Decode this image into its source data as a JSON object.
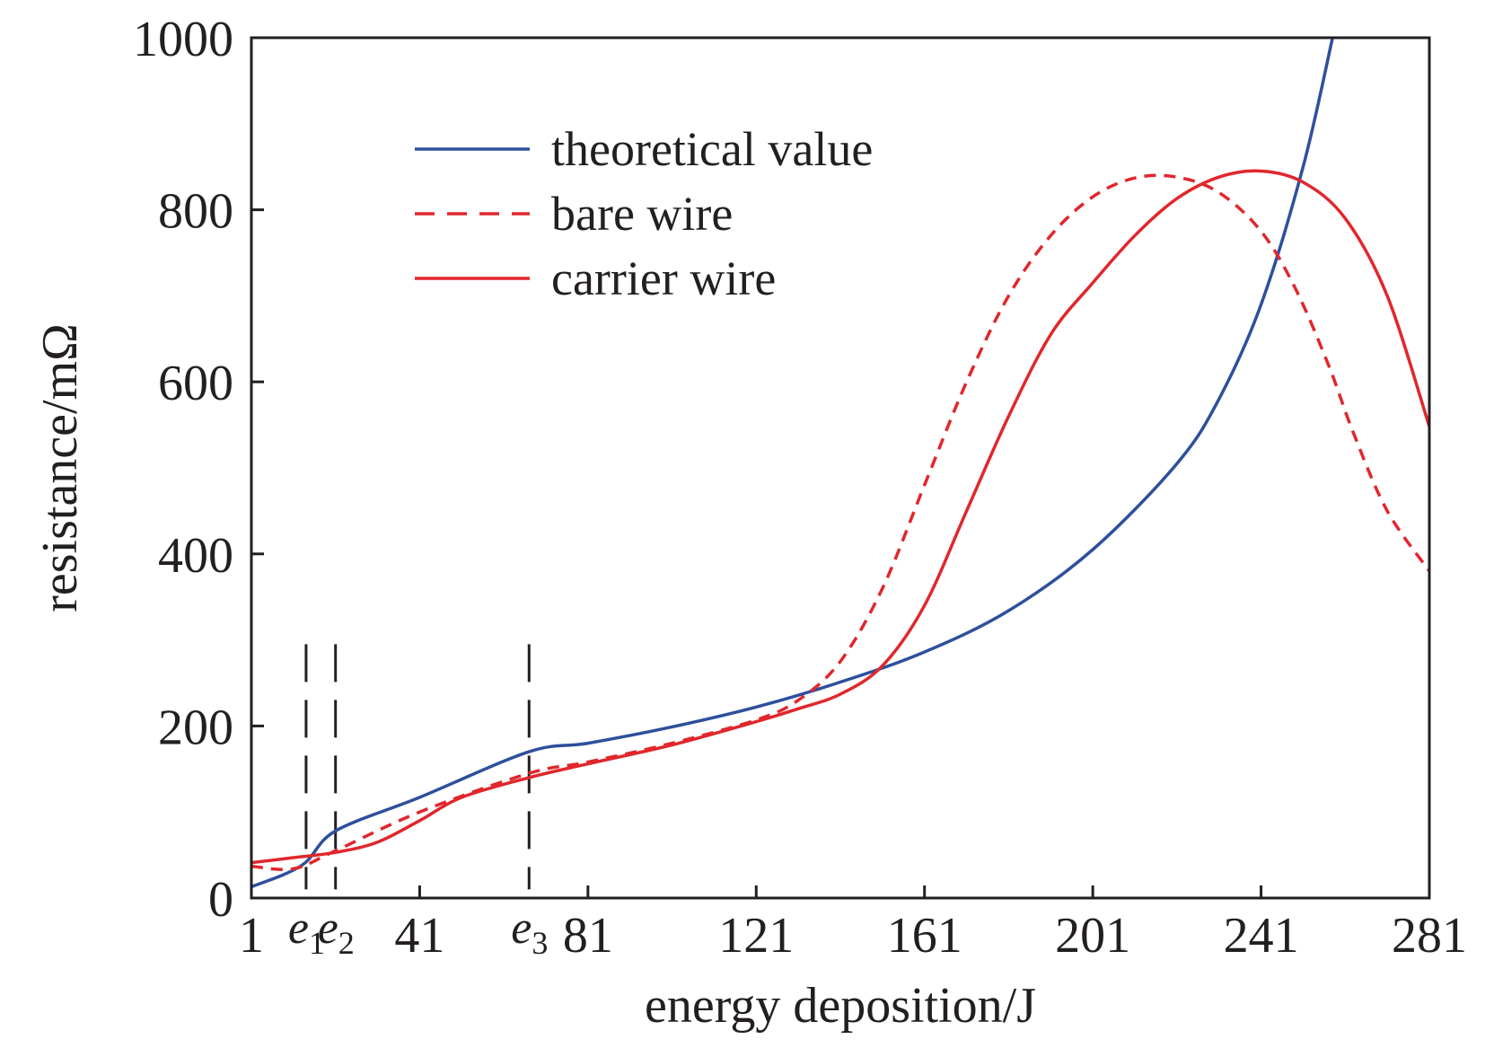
{
  "chart_data": {
    "type": "line",
    "xlabel": "energy deposition/J",
    "ylabel": "resistance/mΩ",
    "xlim": [
      1,
      281
    ],
    "ylim": [
      0,
      1000
    ],
    "x_ticks": [
      1,
      41,
      81,
      121,
      161,
      201,
      241,
      281
    ],
    "x_tick_labels": [
      "1",
      "41",
      "81",
      "121",
      "161",
      "201",
      "241",
      "281"
    ],
    "y_ticks": [
      0,
      200,
      400,
      600,
      800,
      1000
    ],
    "y_tick_labels": [
      "0",
      "200",
      "400",
      "600",
      "800",
      "1000"
    ],
    "grid": false,
    "legend_position": "top-center",
    "markers": [
      {
        "label": "e",
        "sub": "1",
        "x": 14
      },
      {
        "label": "e",
        "sub": "2",
        "x": 21
      },
      {
        "label": "e",
        "sub": "3",
        "x": 67
      }
    ],
    "series": [
      {
        "name": "theoretical value",
        "color": "#2e4f9c",
        "dash": "solid",
        "points": [
          [
            1,
            13
          ],
          [
            13,
            38
          ],
          [
            21,
            78
          ],
          [
            41,
            117
          ],
          [
            67,
            170
          ],
          [
            81,
            180
          ],
          [
            101,
            199
          ],
          [
            121,
            222
          ],
          [
            141,
            251
          ],
          [
            161,
            286
          ],
          [
            181,
            334
          ],
          [
            201,
            405
          ],
          [
            221,
            505
          ],
          [
            231,
            580
          ],
          [
            241,
            690
          ],
          [
            251,
            850
          ],
          [
            258,
            1000
          ]
        ]
      },
      {
        "name": "bare wire",
        "color": "#e0272c",
        "dash": "dashed",
        "points": [
          [
            1,
            37
          ],
          [
            11,
            34
          ],
          [
            21,
            55
          ],
          [
            41,
            100
          ],
          [
            67,
            145
          ],
          [
            81,
            158
          ],
          [
            101,
            180
          ],
          [
            121,
            207
          ],
          [
            131,
            230
          ],
          [
            141,
            275
          ],
          [
            151,
            360
          ],
          [
            161,
            480
          ],
          [
            171,
            600
          ],
          [
            181,
            700
          ],
          [
            191,
            770
          ],
          [
            201,
            815
          ],
          [
            211,
            837
          ],
          [
            221,
            838
          ],
          [
            231,
            820
          ],
          [
            241,
            775
          ],
          [
            249,
            710
          ],
          [
            257,
            620
          ],
          [
            263,
            540
          ],
          [
            271,
            450
          ],
          [
            281,
            380
          ]
        ]
      },
      {
        "name": "carrier wire",
        "color": "#e0272c",
        "dash": "solid",
        "points": [
          [
            1,
            41
          ],
          [
            11,
            47
          ],
          [
            21,
            53
          ],
          [
            31,
            65
          ],
          [
            41,
            90
          ],
          [
            51,
            117
          ],
          [
            67,
            140
          ],
          [
            81,
            156
          ],
          [
            101,
            178
          ],
          [
            121,
            205
          ],
          [
            131,
            220
          ],
          [
            141,
            237
          ],
          [
            151,
            270
          ],
          [
            161,
            340
          ],
          [
            171,
            450
          ],
          [
            181,
            560
          ],
          [
            191,
            655
          ],
          [
            201,
            715
          ],
          [
            211,
            770
          ],
          [
            221,
            813
          ],
          [
            231,
            838
          ],
          [
            241,
            845
          ],
          [
            251,
            832
          ],
          [
            261,
            790
          ],
          [
            271,
            700
          ],
          [
            281,
            548
          ]
        ]
      }
    ]
  }
}
